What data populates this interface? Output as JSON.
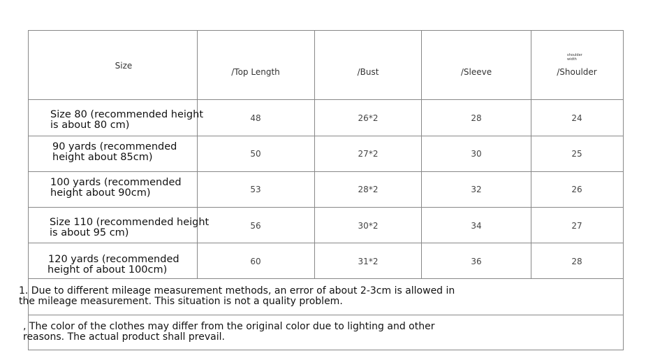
{
  "header": {
    "size": "Size",
    "top_length": "/Top Length",
    "bust": "/Bust",
    "sleeve": "/Sleeve",
    "shoulder_note_1": "shoulder",
    "shoulder_note_2": "width",
    "shoulder": "/Shoulder"
  },
  "rows": [
    {
      "size_1": "Size 80 (recommended height",
      "size_2": "is about 80 cm)",
      "top_length": "48",
      "bust": "26*2",
      "sleeve": "28",
      "shoulder": "24"
    },
    {
      "size_1": "90 yards (recommended",
      "size_2": "height about 85cm)",
      "top_length": "50",
      "bust": "27*2",
      "sleeve": "30",
      "shoulder": "25"
    },
    {
      "size_1": "100 yards (recommended",
      "size_2": "height about 90cm)",
      "top_length": "53",
      "bust": "28*2",
      "sleeve": "32",
      "shoulder": "26"
    },
    {
      "size_1": "Size 110 (recommended height",
      "size_2": "is about 95 cm)",
      "top_length": "56",
      "bust": "30*2",
      "sleeve": "34",
      "shoulder": "27"
    },
    {
      "size_1": "120 yards (recommended",
      "size_2": "height of about 100cm)",
      "top_length": "60",
      "bust": "31*2",
      "sleeve": "36",
      "shoulder": "28"
    }
  ],
  "notes": [
    {
      "line_1": "1. Due to different mileage measurement methods, an error of about 2-3cm is allowed in",
      "line_2": "the mileage measurement. This situation is not a quality problem."
    },
    {
      "line_1": ", The color of the clothes may differ from the original color due to lighting and other",
      "line_2": "reasons. The actual product shall prevail."
    }
  ]
}
